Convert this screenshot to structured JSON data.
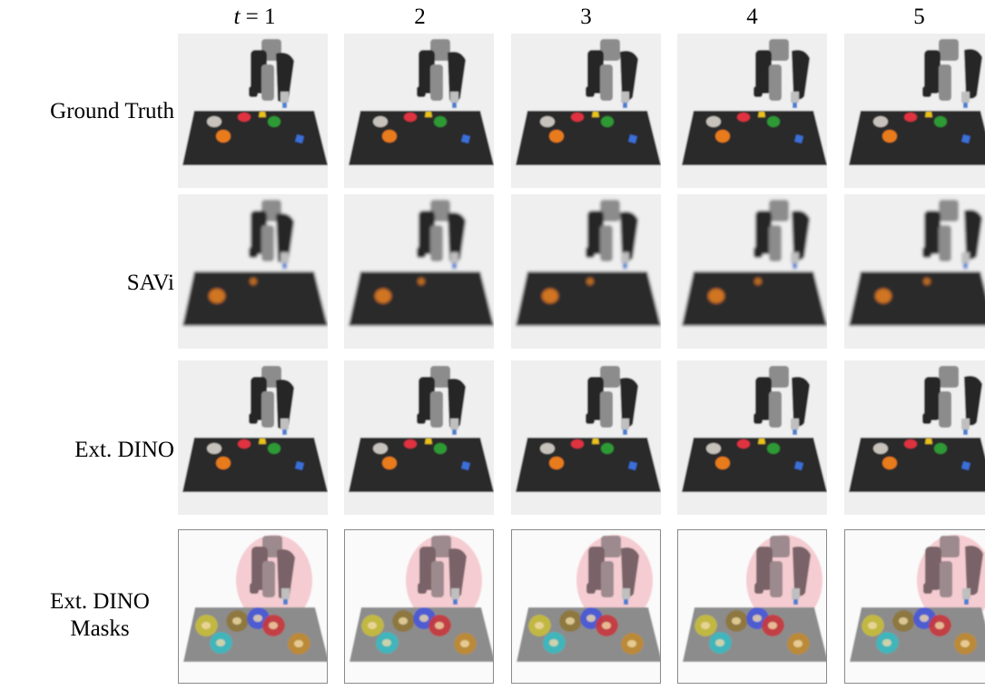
{
  "columns": [
    "t = 1",
    "2",
    "3",
    "4",
    "5"
  ],
  "rows": [
    {
      "label_lines": [
        "Ground Truth"
      ],
      "variant": "gt"
    },
    {
      "label_lines": [
        "SAVi"
      ],
      "variant": "savi"
    },
    {
      "label_lines": [
        "Ext. DINO"
      ],
      "variant": "dino"
    },
    {
      "label_lines": [
        "Ext. DINO",
        "Masks"
      ],
      "variant": "mask"
    }
  ],
  "time_steps": [
    1,
    2,
    3,
    4,
    5
  ]
}
